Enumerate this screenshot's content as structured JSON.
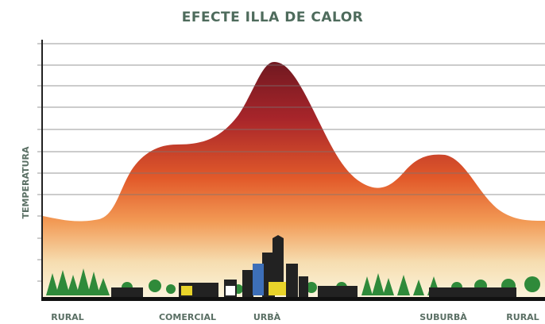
{
  "header": {
    "title": "EFECTE ILLA DE CALOR"
  },
  "axis": {
    "y_label": "TEMPERATURA"
  },
  "zones": [
    "RURAL",
    "COMERCIAL",
    "URBÀ",
    "SUBURBÀ",
    "RURAL"
  ]
}
